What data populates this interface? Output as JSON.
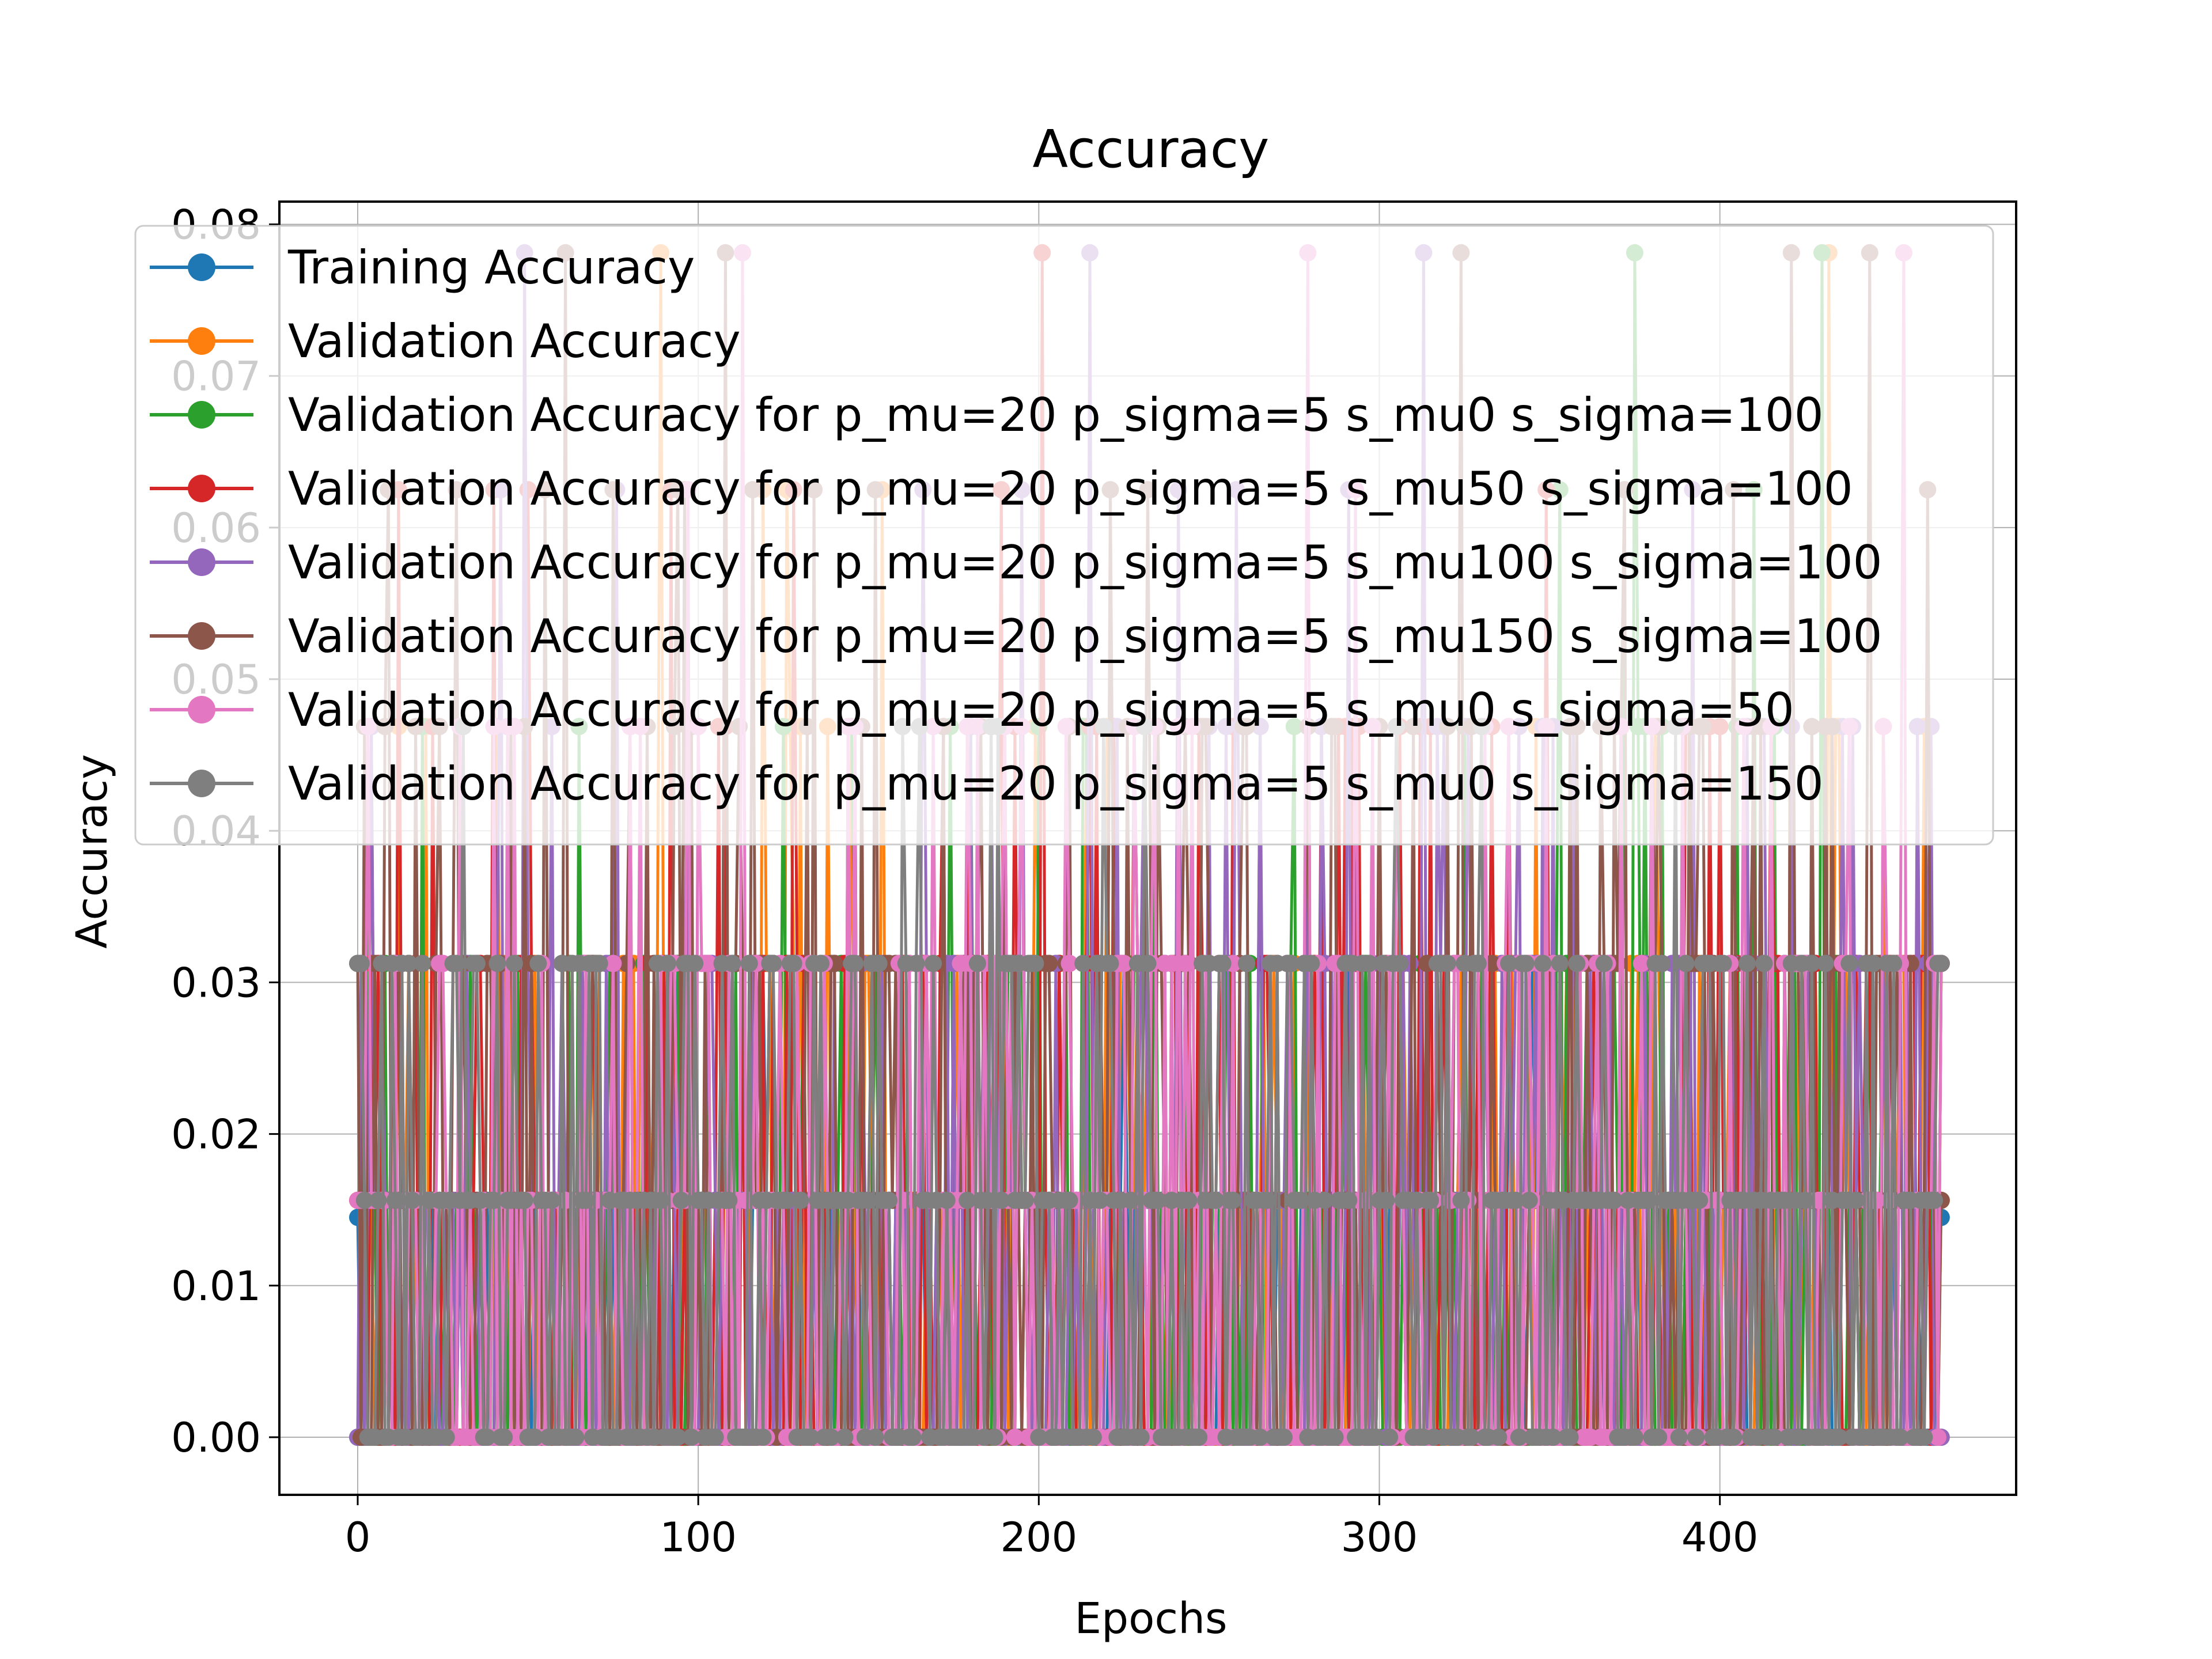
{
  "chart_data": {
    "type": "line",
    "title": "Accuracy",
    "xlabel": "Epochs",
    "ylabel": "Accuracy",
    "xlim": [
      -23,
      487
    ],
    "ylim": [
      -0.0038,
      0.0815
    ],
    "grid": true,
    "legend_position": "top-left",
    "x_ticks": [
      0,
      100,
      200,
      300,
      400
    ],
    "y_ticks": [
      0.0,
      0.01,
      0.02,
      0.03,
      0.04,
      0.05,
      0.06,
      0.07,
      0.08
    ],
    "x_tick_labels": [
      "0",
      "100",
      "200",
      "300",
      "400"
    ],
    "y_tick_labels": [
      "0.00",
      "0.01",
      "0.02",
      "0.03",
      "0.04",
      "0.05",
      "0.06",
      "0.07",
      "0.08"
    ],
    "n_epochs": 466,
    "value_levels": [
      0.0,
      0.015625,
      0.03125,
      0.046875,
      0.0625,
      0.078125
    ],
    "series": [
      {
        "name": "Training Accuracy",
        "color": "#1f77b4",
        "first": 0.0145,
        "last": 0.0145
      },
      {
        "name": "Validation Accuracy",
        "color": "#ff7f0e"
      },
      {
        "name": "Validation Accuracy for p_mu=20 p_sigma=5 s_mu0 s_sigma=100",
        "color": "#2ca02c"
      },
      {
        "name": "Validation Accuracy for p_mu=20 p_sigma=5 s_mu50 s_sigma=100",
        "color": "#d62728"
      },
      {
        "name": "Validation Accuracy for p_mu=20 p_sigma=5 s_mu100 s_sigma=100",
        "color": "#9467bd"
      },
      {
        "name": "Validation Accuracy for p_mu=20 p_sigma=5 s_mu150 s_sigma=100",
        "color": "#8c564b"
      },
      {
        "name": "Validation Accuracy for p_mu=20 p_sigma=5 s_mu0 s_sigma=50",
        "color": "#e377c2"
      },
      {
        "name": "Validation Accuracy for p_mu=20 p_sigma=5 s_mu0 s_sigma=150",
        "color": "#7f7f7f"
      }
    ]
  }
}
